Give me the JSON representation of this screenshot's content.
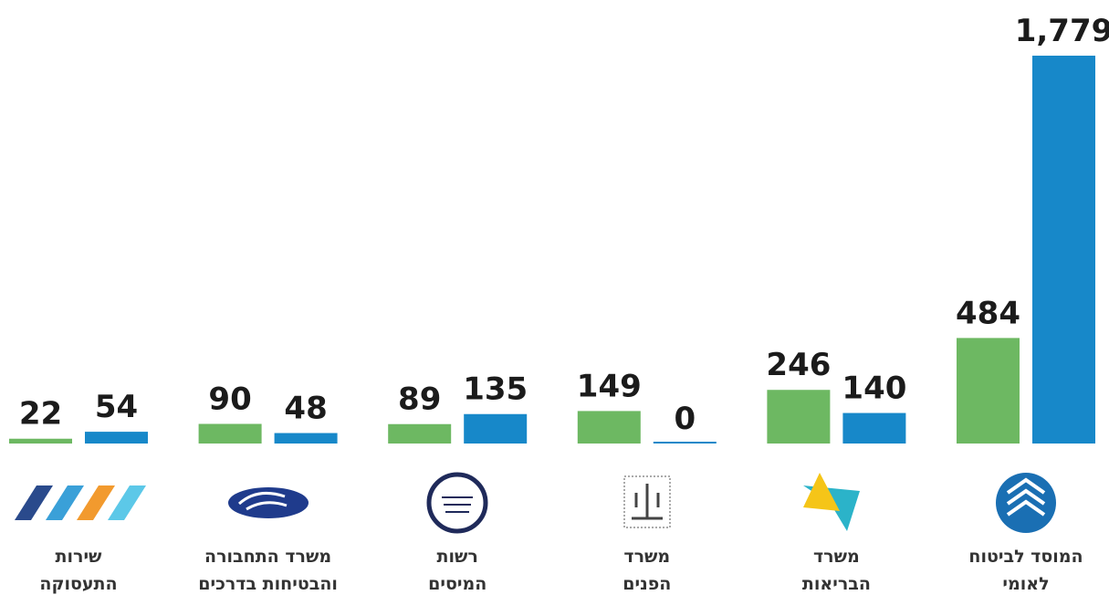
{
  "chart_data": {
    "type": "bar",
    "categories": [
      [
        "המוסד לביטוח",
        "לאומי"
      ],
      [
        "משרד",
        "הבריאות"
      ],
      [
        "משרד",
        "הפנים"
      ],
      [
        "רשות",
        "המיסים"
      ],
      [
        "משרד התחבורה",
        "והבטיחות בדרכים"
      ],
      [
        "שירות",
        "התעסוקה"
      ]
    ],
    "series": [
      {
        "color": "#6db862",
        "values": [
          484,
          246,
          149,
          89,
          90,
          22
        ]
      },
      {
        "color": "#1788c9",
        "values": [
          1779,
          140,
          0,
          135,
          48,
          54
        ],
        "value_labels": [
          "1,779",
          "140",
          "0",
          "135",
          "48",
          "54"
        ]
      }
    ],
    "ylim": [
      0,
      1779
    ]
  }
}
